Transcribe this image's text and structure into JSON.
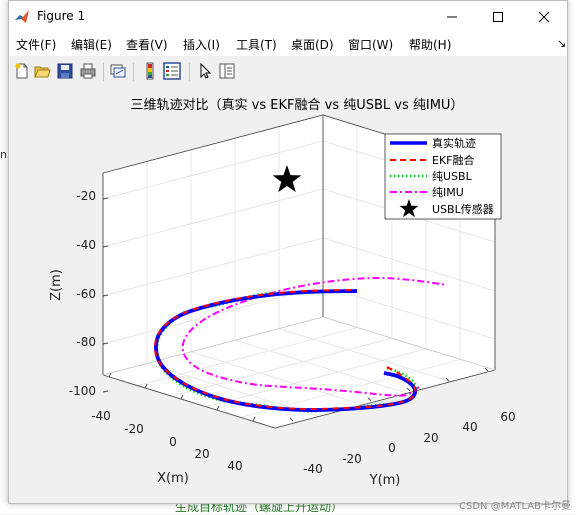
{
  "window": {
    "title": "Figure 1"
  },
  "menus": [
    "文件(F)",
    "编辑(E)",
    "查看(V)",
    "插入(I)",
    "工具(T)",
    "桌面(D)",
    "窗口(W)",
    "帮助(H)"
  ],
  "toolbar": [
    "new-figure",
    "open-file",
    "save",
    "print",
    "link-plot",
    "insert-colorbar",
    "insert-legend",
    "edit-plot",
    "property-inspector"
  ],
  "figure": {
    "title": "三维轨迹对比（真实 vs EKF融合 vs 纯USBL vs 纯IMU）",
    "axes": {
      "xlabel": "X(m)",
      "ylabel": "Y(m)",
      "zlabel": "Z(m)",
      "xticks": [
        "-40",
        "-20",
        "0",
        "20",
        "40"
      ],
      "yticks": [
        "-40",
        "-20",
        "0",
        "20",
        "40",
        "60"
      ],
      "zticks": [
        "-20",
        "-40",
        "-60",
        "-80",
        "-100"
      ]
    },
    "legend": {
      "entries": [
        {
          "label": "真实轨迹",
          "color": "#0000ff",
          "style": "solid"
        },
        {
          "label": "EKF融合",
          "color": "#ff0000",
          "style": "dashed"
        },
        {
          "label": "纯USBL",
          "color": "#00cc00",
          "style": "dotted"
        },
        {
          "label": "纯IMU",
          "color": "#ff00ff",
          "style": "dashdot"
        },
        {
          "label": "USBL传感器",
          "color": "#000000",
          "style": "star"
        }
      ]
    }
  },
  "background": {
    "watermark": "CSDN @MATLAB卡尔曼",
    "bottom_text": "生成目标轨迹（螺旋上升运动）"
  }
}
